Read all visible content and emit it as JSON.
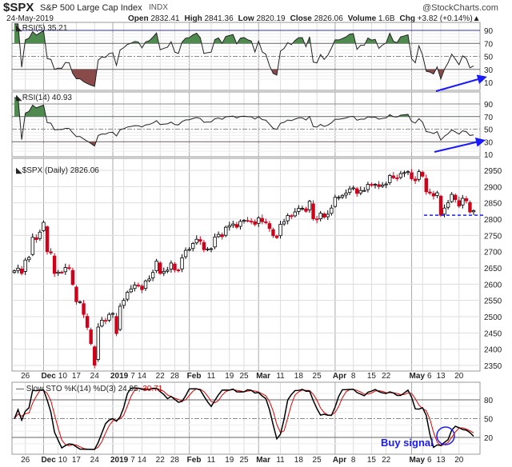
{
  "header": {
    "symbol": "$SPX",
    "name": "S&P 500 Large Cap Index",
    "exchange": "INDX",
    "brand": "@StockCharts.com",
    "date": "24-May-2019",
    "quote": [
      {
        "k": "Open",
        "v": "2832.41"
      },
      {
        "k": "High",
        "v": "2841.36"
      },
      {
        "k": "Low",
        "v": "2820.19"
      },
      {
        "k": "Close",
        "v": "2826.06"
      },
      {
        "k": "Volume",
        "v": "1.6B"
      },
      {
        "k": "Chg",
        "v": "+3.82 (+0.14%)▲"
      }
    ]
  },
  "colors": {
    "up": "#000000",
    "down": "#d0021b",
    "grid": "#dddddd",
    "rsi_hi": "#4f8a4f",
    "rsi_lo": "#8b4a4a",
    "annot": "#1a1aff",
    "sto_k": "#000000",
    "sto_d": "#e00000"
  },
  "chart_data": [
    {
      "type": "candlestick",
      "title": "$SPX (Daily) 2826.06",
      "ylim": [
        2340,
        2970
      ],
      "yticks": [
        2350,
        2400,
        2450,
        2500,
        2550,
        2600,
        2650,
        2700,
        2750,
        2800,
        2850,
        2900,
        2950
      ],
      "closes": [
        2641,
        2649,
        2633,
        2674,
        2682,
        2744,
        2737,
        2760,
        2790,
        2700,
        2696,
        2633,
        2637,
        2636,
        2651,
        2650,
        2599,
        2546,
        2546,
        2507,
        2467,
        2417,
        2351,
        2468,
        2489,
        2486,
        2507,
        2510,
        2448,
        2532,
        2550,
        2575,
        2585,
        2597,
        2596,
        2583,
        2610,
        2616,
        2636,
        2671,
        2633,
        2639,
        2643,
        2665,
        2644,
        2641,
        2681,
        2704,
        2707,
        2725,
        2738,
        2732,
        2706,
        2708,
        2709,
        2745,
        2753,
        2746,
        2775,
        2780,
        2785,
        2775,
        2793,
        2796,
        2794,
        2793,
        2784,
        2804,
        2792,
        2789,
        2771,
        2749,
        2743,
        2784,
        2792,
        2811,
        2808,
        2822,
        2833,
        2833,
        2824,
        2855,
        2801,
        2798,
        2818,
        2806,
        2815,
        2834,
        2867,
        2867,
        2873,
        2880,
        2893,
        2896,
        2879,
        2888,
        2888,
        2907,
        2905,
        2907,
        2900,
        2905,
        2908,
        2934,
        2927,
        2926,
        2940,
        2943,
        2946,
        2924,
        2918,
        2946,
        2932,
        2884,
        2880,
        2871,
        2881,
        2812,
        2834,
        2850,
        2876,
        2860,
        2840,
        2864,
        2856,
        2822,
        2826
      ],
      "support_level": 2812
    },
    {
      "type": "line",
      "title": "RSI(5) 35.21",
      "period": 5,
      "levels": [
        90,
        70,
        50,
        30,
        10
      ]
    },
    {
      "type": "line",
      "title": "RSI(14) 40.93",
      "period": 14,
      "levels": [
        90,
        70,
        50,
        30,
        10
      ]
    },
    {
      "type": "line",
      "title": "Slow STO %K(14) %D(3) 24.95,",
      "title_d": "30.71",
      "levels": [
        80,
        50,
        20
      ],
      "annotation": "Buy signal"
    }
  ],
  "x_labels": [
    {
      "l": "26",
      "i": 3
    },
    {
      "l": "Dec",
      "i": 8,
      "m": 1
    },
    {
      "l": "10",
      "i": 12
    },
    {
      "l": "17",
      "i": 17
    },
    {
      "l": "24",
      "i": 22
    },
    {
      "l": "2019",
      "i": 27,
      "m": 1
    },
    {
      "l": "7",
      "i": 30
    },
    {
      "l": "14",
      "i": 35
    },
    {
      "l": "22",
      "i": 40
    },
    {
      "l": "28",
      "i": 44
    },
    {
      "l": "Feb",
      "i": 48,
      "m": 1
    },
    {
      "l": "11",
      "i": 54
    },
    {
      "l": "19",
      "i": 59
    },
    {
      "l": "25",
      "i": 63
    },
    {
      "l": "Mar",
      "i": 67,
      "m": 1
    },
    {
      "l": "11",
      "i": 73
    },
    {
      "l": "18",
      "i": 78
    },
    {
      "l": "25",
      "i": 83
    },
    {
      "l": "Apr",
      "i": 88,
      "m": 1
    },
    {
      "l": "8",
      "i": 93
    },
    {
      "l": "15",
      "i": 98
    },
    {
      "l": "22",
      "i": 102
    },
    {
      "l": "May",
      "i": 109,
      "m": 1
    },
    {
      "l": "6",
      "i": 112
    },
    {
      "l": "13",
      "i": 117
    },
    {
      "l": "20",
      "i": 122
    }
  ]
}
